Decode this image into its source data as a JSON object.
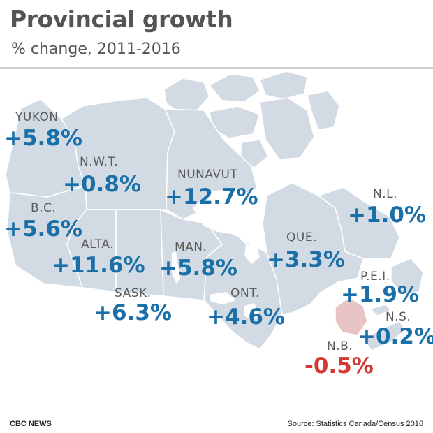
{
  "header": {
    "title": "Provincial growth",
    "subtitle": "% change, 2011-2016"
  },
  "colors": {
    "land": "#d2dbe3",
    "border": "#ffffff",
    "positive": "#1a6fa8",
    "negative": "#d23a35",
    "highlight_land": "#e9c4c6"
  },
  "regions": [
    {
      "id": "yukon",
      "name": "YUKON",
      "value": "+5.8%"
    },
    {
      "id": "nwt",
      "name": "N.W.T.",
      "value": "+0.8%"
    },
    {
      "id": "nunavut",
      "name": "NUNAVUT",
      "value": "+12.7%"
    },
    {
      "id": "nl",
      "name": "N.L.",
      "value": "+1.0%"
    },
    {
      "id": "bc",
      "name": "B.C.",
      "value": "+5.6%"
    },
    {
      "id": "alta",
      "name": "ALTA.",
      "value": "+11.6%"
    },
    {
      "id": "man",
      "name": "MAN.",
      "value": "+5.8%"
    },
    {
      "id": "que",
      "name": "QUE.",
      "value": "+3.3%"
    },
    {
      "id": "sask",
      "name": "SASK.",
      "value": "+6.3%"
    },
    {
      "id": "ont",
      "name": "ONT.",
      "value": "+4.6%"
    },
    {
      "id": "pei",
      "name": "P.E.I.",
      "value": "+1.9%"
    },
    {
      "id": "ns",
      "name": "N.S.",
      "value": "+0.2%"
    },
    {
      "id": "nb",
      "name": "N.B.",
      "value": "-0.5%"
    }
  ],
  "footer": {
    "credit": "CBC NEWS",
    "source": "Source: Statistics Canada/Census 2016"
  }
}
